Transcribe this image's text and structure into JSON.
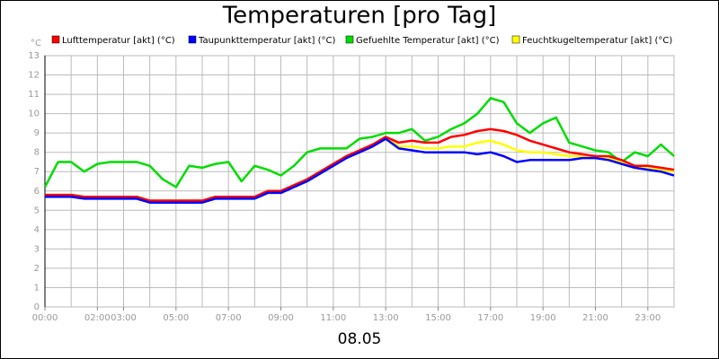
{
  "chart_data": {
    "type": "line",
    "title": "Temperaturen [pro Tag]",
    "y_unit": "°C",
    "x_caption": "08.05",
    "x": [
      0,
      0.5,
      1,
      1.5,
      2,
      2.5,
      3,
      3.5,
      4,
      4.5,
      5,
      5.5,
      6,
      6.5,
      7,
      7.5,
      8,
      8.5,
      9,
      9.5,
      10,
      10.5,
      11,
      11.5,
      12,
      12.5,
      13,
      13.5,
      14,
      14.5,
      15,
      15.5,
      16,
      16.5,
      17,
      17.5,
      18,
      18.5,
      19,
      19.5,
      20,
      20.5,
      21,
      21.5,
      22,
      22.5,
      23,
      23.5,
      24
    ],
    "xlim": [
      0,
      24
    ],
    "xticks": [
      {
        "value": 0,
        "label": "00:00"
      },
      {
        "value": 2,
        "label": "02:00"
      },
      {
        "value": 3,
        "label": "03:00"
      },
      {
        "value": 5,
        "label": "05:00"
      },
      {
        "value": 7,
        "label": "07:00"
      },
      {
        "value": 9,
        "label": "09:00"
      },
      {
        "value": 11,
        "label": "11:00"
      },
      {
        "value": 13,
        "label": "13:00"
      },
      {
        "value": 15,
        "label": "15:00"
      },
      {
        "value": 17,
        "label": "17:00"
      },
      {
        "value": 19,
        "label": "19:00"
      },
      {
        "value": 21,
        "label": "21:00"
      },
      {
        "value": 23,
        "label": "23:00"
      }
    ],
    "ylim": [
      0,
      13
    ],
    "yticks": [
      0,
      1,
      2,
      3,
      4,
      5,
      6,
      7,
      8,
      9,
      10,
      11,
      12,
      13
    ],
    "grid": true,
    "series": [
      {
        "name": "Lufttemperatur [akt] (°C)",
        "color": "#ff0000",
        "values": [
          5.8,
          5.8,
          5.8,
          5.7,
          5.7,
          5.7,
          5.7,
          5.7,
          5.5,
          5.5,
          5.5,
          5.5,
          5.5,
          5.7,
          5.7,
          5.7,
          5.7,
          6.0,
          6.0,
          6.3,
          6.6,
          7.0,
          7.4,
          7.8,
          8.1,
          8.4,
          8.8,
          8.5,
          8.6,
          8.5,
          8.5,
          8.8,
          8.9,
          9.1,
          9.2,
          9.1,
          8.9,
          8.6,
          8.4,
          8.2,
          8.0,
          7.9,
          7.8,
          7.8,
          7.6,
          7.3,
          7.3,
          7.2,
          7.1
        ]
      },
      {
        "name": "Taupunkttemperatur [akt] (°C)",
        "color": "#0000ff",
        "values": [
          5.7,
          5.7,
          5.7,
          5.6,
          5.6,
          5.6,
          5.6,
          5.6,
          5.4,
          5.4,
          5.4,
          5.4,
          5.4,
          5.6,
          5.6,
          5.6,
          5.6,
          5.9,
          5.9,
          6.2,
          6.5,
          6.9,
          7.3,
          7.7,
          8.0,
          8.3,
          8.7,
          8.2,
          8.1,
          8.0,
          8.0,
          8.0,
          8.0,
          7.9,
          8.0,
          7.8,
          7.5,
          7.6,
          7.6,
          7.6,
          7.6,
          7.7,
          7.7,
          7.6,
          7.4,
          7.2,
          7.1,
          7.0,
          6.8
        ]
      },
      {
        "name": "Gefuehlte Temperatur [akt] (°C)",
        "color": "#00dd00",
        "values": [
          6.2,
          7.5,
          7.5,
          7.0,
          7.4,
          7.5,
          7.5,
          7.5,
          7.3,
          6.6,
          6.2,
          7.3,
          7.2,
          7.4,
          7.5,
          6.5,
          7.3,
          7.1,
          6.8,
          7.3,
          8.0,
          8.2,
          8.2,
          8.2,
          8.7,
          8.8,
          9.0,
          9.0,
          9.2,
          8.6,
          8.8,
          9.2,
          9.5,
          10.0,
          10.8,
          10.6,
          9.5,
          9.0,
          9.5,
          9.8,
          8.5,
          8.3,
          8.1,
          8.0,
          7.5,
          8.0,
          7.8,
          8.4,
          7.8
        ]
      },
      {
        "name": "Feuchtkugeltemperatur [akt] (°C)",
        "color": "#ffff00",
        "values": [
          5.8,
          5.8,
          5.8,
          5.7,
          5.7,
          5.7,
          5.7,
          5.7,
          5.5,
          5.5,
          5.5,
          5.5,
          5.5,
          5.7,
          5.7,
          5.7,
          5.7,
          6.0,
          6.0,
          6.3,
          6.6,
          7.0,
          7.4,
          7.8,
          8.1,
          8.4,
          8.8,
          8.3,
          8.3,
          8.2,
          8.2,
          8.3,
          8.3,
          8.5,
          8.6,
          8.4,
          8.1,
          8.0,
          8.0,
          7.9,
          7.8,
          7.8,
          7.8,
          7.7,
          7.5,
          7.2,
          7.2,
          7.1,
          7.0
        ]
      }
    ]
  }
}
